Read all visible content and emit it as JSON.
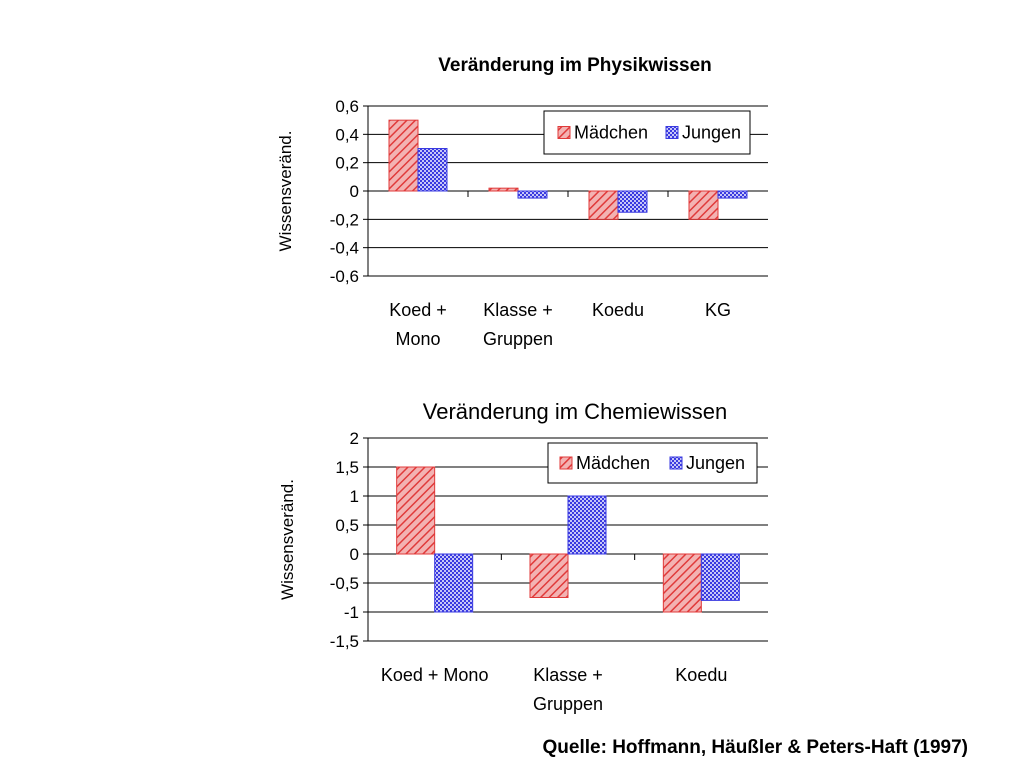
{
  "source": "Quelle: Hoffmann, Häußler & Peters-Haft (1997)",
  "colors": {
    "maedchen": "#e03a3a",
    "jungen": "#3a3ae0",
    "gridline": "#000000"
  },
  "chart_data": [
    {
      "type": "bar",
      "title": "Veränderung im Physikwissen",
      "ylabel": "Wissensveränd.",
      "xlabel": "",
      "ylim": [
        -0.6,
        0.6
      ],
      "yticks": [
        "0,6",
        "0,4",
        "0,2",
        "0",
        "-0,2",
        "-0,4",
        "-0,6"
      ],
      "grid": true,
      "legend": "top-right",
      "categories": [
        [
          "Koed +",
          "Mono"
        ],
        [
          "Klasse +",
          "Gruppen"
        ],
        [
          "Koedu"
        ],
        [
          "KG"
        ]
      ],
      "series": [
        {
          "name": "Mädchen",
          "values": [
            0.5,
            0.02,
            -0.2,
            -0.2
          ]
        },
        {
          "name": "Jungen",
          "values": [
            0.3,
            -0.05,
            -0.15,
            -0.05
          ]
        }
      ]
    },
    {
      "type": "bar",
      "title": "Veränderung im Chemiewissen",
      "ylabel": "Wissensveränd.",
      "xlabel": "",
      "ylim": [
        -1.5,
        2
      ],
      "yticks": [
        "2",
        "1,5",
        "1",
        "0,5",
        "0",
        "-0,5",
        "-1",
        "-1,5"
      ],
      "grid": true,
      "legend": "top-right",
      "categories": [
        [
          "Koed + Mono"
        ],
        [
          "Klasse +",
          "Gruppen"
        ],
        [
          "Koedu"
        ]
      ],
      "series": [
        {
          "name": "Mädchen",
          "values": [
            1.5,
            -0.75,
            -1
          ]
        },
        {
          "name": "Jungen",
          "values": [
            -1,
            1,
            -0.8
          ]
        }
      ]
    }
  ]
}
